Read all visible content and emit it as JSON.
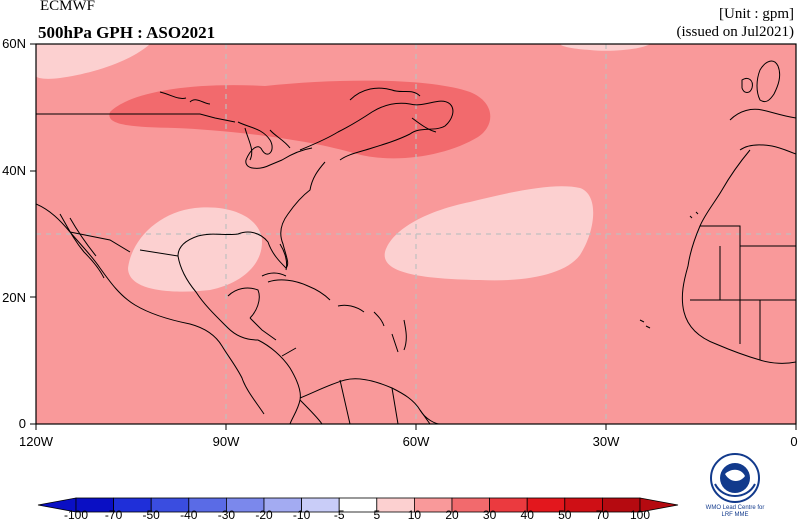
{
  "header": {
    "provider": "ECMWF",
    "title": "500hPa GPH : ASO2021",
    "unit": "[Unit : gpm]",
    "issued": "(issued on Jul2021)"
  },
  "map": {
    "lat_labels": [
      "60N",
      "40N",
      "20N",
      "0"
    ],
    "lon_labels": [
      "120W",
      "90W",
      "60W",
      "30W",
      "0"
    ],
    "background_color": "#f9999a",
    "regions": [
      {
        "name": "NE North America / NW Atlantic",
        "category": "20 to 30",
        "color": "#f26a6d"
      },
      {
        "name": "Gulf of Mexico",
        "category": "5 to 10",
        "color": "#fcd0d0"
      },
      {
        "name": "Central Atlantic",
        "category": "5 to 10",
        "color": "#fcd0d0"
      },
      {
        "name": "NE Pacific corner",
        "category": "5 to 10",
        "color": "#fcd0d0"
      },
      {
        "name": "Far North Atlantic",
        "category": "5 to 10",
        "color": "#fcd0d0"
      }
    ]
  },
  "colorbar": {
    "labels": [
      "-100",
      "-70",
      "-50",
      "-40",
      "-30",
      "-20",
      "-10",
      "-5",
      "5",
      "10",
      "20",
      "30",
      "40",
      "50",
      "70",
      "100"
    ],
    "colors": [
      "#0a0fc4",
      "#1f2fd9",
      "#3a4de0",
      "#5a6be6",
      "#7b88ec",
      "#a3abf2",
      "#c9cdf8",
      "#ffffff",
      "#fcd0d0",
      "#f9999a",
      "#f26a6d",
      "#eb3a3f",
      "#e3171d",
      "#cf0f15",
      "#b50a10"
    ]
  },
  "logo": {
    "name": "wmo-logo-icon",
    "caption": "WMO Lead Centre for LRF MME"
  }
}
